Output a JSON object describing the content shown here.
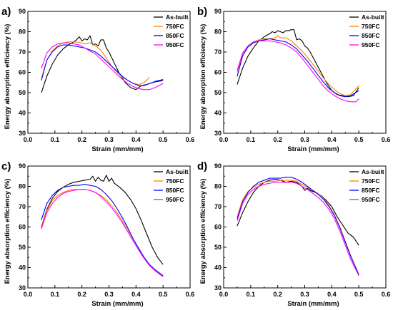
{
  "chart_data": [
    {
      "type": "line",
      "panel_label": "a)",
      "xlabel": "Strain (mm/mm)",
      "ylabel": "Energy absorption efficiency (%)",
      "xlim": [
        0.0,
        0.6
      ],
      "ylim": [
        30,
        90
      ],
      "xticks": [
        "0.0",
        "0.1",
        "0.2",
        "0.3",
        "0.4",
        "0.5",
        "0.6"
      ],
      "yticks": [
        "30",
        "40",
        "50",
        "60",
        "70",
        "80",
        "90"
      ],
      "legend": "top-right",
      "series": [
        {
          "name": "As-built",
          "color": "#000000",
          "x": [
            0.05,
            0.07,
            0.09,
            0.11,
            0.13,
            0.15,
            0.17,
            0.18,
            0.19,
            0.2,
            0.21,
            0.22,
            0.23,
            0.24,
            0.25,
            0.26,
            0.27,
            0.28,
            0.29,
            0.3,
            0.32,
            0.34,
            0.36,
            0.38,
            0.4,
            0.42,
            0.44,
            0.46,
            0.48,
            0.5
          ],
          "y": [
            50,
            58,
            64,
            68.5,
            71.5,
            73.5,
            75,
            76,
            77.5,
            75.5,
            76.5,
            76,
            78,
            73.5,
            74,
            73,
            76,
            76,
            72,
            70,
            64.5,
            59,
            55,
            52.5,
            51.5,
            53.5,
            54,
            55,
            55.5,
            56
          ]
        },
        {
          "name": "750FC",
          "color": "#ff8000",
          "x": [
            0.05,
            0.07,
            0.09,
            0.11,
            0.13,
            0.15,
            0.17,
            0.19,
            0.21,
            0.23,
            0.25,
            0.27,
            0.29,
            0.31,
            0.33,
            0.35,
            0.37,
            0.39,
            0.41,
            0.43,
            0.45
          ],
          "y": [
            57,
            66,
            70.5,
            73,
            74.5,
            75,
            75,
            74.8,
            74,
            74.5,
            73,
            71,
            67,
            63,
            60,
            57.5,
            56,
            54.5,
            54,
            55,
            57.5
          ]
        },
        {
          "name": "850FC",
          "color": "#0000ff",
          "x": [
            0.05,
            0.07,
            0.09,
            0.11,
            0.13,
            0.15,
            0.17,
            0.19,
            0.21,
            0.23,
            0.25,
            0.27,
            0.29,
            0.31,
            0.33,
            0.35,
            0.37,
            0.39,
            0.41,
            0.43,
            0.45,
            0.47,
            0.5
          ],
          "y": [
            56,
            66,
            70,
            72.5,
            73.5,
            73.5,
            73,
            72.5,
            72,
            71,
            70,
            68,
            65.5,
            63,
            60.5,
            58,
            56,
            54.5,
            53.5,
            53.5,
            54.5,
            55.5,
            56.5
          ]
        },
        {
          "name": "950FC",
          "color": "#ff00ff",
          "x": [
            0.05,
            0.07,
            0.09,
            0.11,
            0.13,
            0.15,
            0.17,
            0.19,
            0.21,
            0.23,
            0.25,
            0.27,
            0.29,
            0.31,
            0.33,
            0.35,
            0.37,
            0.39,
            0.41,
            0.43,
            0.45,
            0.47,
            0.5
          ],
          "y": [
            62,
            69.5,
            72.5,
            74,
            74.5,
            74.5,
            74,
            73.5,
            72,
            70.5,
            69,
            66.5,
            64,
            61.5,
            59,
            56.5,
            54.5,
            53,
            52,
            51.5,
            51.5,
            52.5,
            54.5
          ]
        }
      ]
    },
    {
      "type": "line",
      "panel_label": "b)",
      "xlabel": "Strain (mm/mm)",
      "ylabel": "Energy absorption efficiency (%)",
      "xlim": [
        0.0,
        0.6
      ],
      "ylim": [
        30,
        90
      ],
      "xticks": [
        "0.0",
        "0.1",
        "0.2",
        "0.3",
        "0.4",
        "0.5",
        "0.6"
      ],
      "yticks": [
        "30",
        "40",
        "50",
        "60",
        "70",
        "80",
        "90"
      ],
      "legend": "top-right",
      "series": [
        {
          "name": "As-built",
          "color": "#000000",
          "x": [
            0.05,
            0.07,
            0.09,
            0.11,
            0.13,
            0.15,
            0.17,
            0.18,
            0.19,
            0.2,
            0.21,
            0.22,
            0.23,
            0.24,
            0.25,
            0.26,
            0.27,
            0.28,
            0.29,
            0.3,
            0.31,
            0.32,
            0.34,
            0.36,
            0.38,
            0.4,
            0.42,
            0.44,
            0.46,
            0.48,
            0.5
          ],
          "y": [
            54,
            62,
            68,
            72,
            75.5,
            77.5,
            79,
            80,
            79.5,
            80.5,
            80,
            79.5,
            80.5,
            80.5,
            81,
            81,
            76,
            76.5,
            75.5,
            73,
            72,
            70,
            65,
            60,
            55,
            51,
            49,
            48.5,
            48,
            48.5,
            52.5
          ]
        },
        {
          "name": "750FC",
          "color": "#ff8000",
          "x": [
            0.05,
            0.07,
            0.09,
            0.11,
            0.13,
            0.15,
            0.17,
            0.19,
            0.2,
            0.21,
            0.23,
            0.25,
            0.27,
            0.29,
            0.31,
            0.33,
            0.35,
            0.37,
            0.39,
            0.41,
            0.43,
            0.45,
            0.47,
            0.5
          ],
          "y": [
            60,
            69,
            73,
            75,
            76,
            76.5,
            76.5,
            77,
            78,
            77,
            77,
            75.5,
            73,
            70.5,
            67.5,
            64,
            60.5,
            57,
            54,
            51.5,
            49.5,
            48.5,
            49,
            53.5
          ]
        },
        {
          "name": "850FC",
          "color": "#0000ff",
          "x": [
            0.05,
            0.07,
            0.09,
            0.11,
            0.13,
            0.15,
            0.17,
            0.19,
            0.21,
            0.23,
            0.25,
            0.27,
            0.29,
            0.31,
            0.33,
            0.35,
            0.37,
            0.39,
            0.41,
            0.43,
            0.45,
            0.47,
            0.5
          ],
          "y": [
            58,
            68,
            72.5,
            74.5,
            75.5,
            76,
            76.5,
            76,
            75.5,
            75,
            73.5,
            71.5,
            68.5,
            65.5,
            62,
            58.5,
            55,
            52,
            50,
            48.5,
            48,
            48.5,
            51
          ]
        },
        {
          "name": "950FC",
          "color": "#ff00ff",
          "x": [
            0.05,
            0.07,
            0.09,
            0.11,
            0.13,
            0.15,
            0.17,
            0.19,
            0.21,
            0.23,
            0.25,
            0.27,
            0.29,
            0.31,
            0.33,
            0.35,
            0.37,
            0.39,
            0.41,
            0.43,
            0.45,
            0.47,
            0.49,
            0.5
          ],
          "y": [
            61,
            69.5,
            73,
            75,
            75.5,
            75.5,
            75.5,
            75,
            74.5,
            73.5,
            72,
            70,
            67,
            63.5,
            60,
            56.5,
            53,
            50.5,
            48.5,
            47,
            46,
            45.5,
            45.5,
            47
          ]
        }
      ]
    },
    {
      "type": "line",
      "panel_label": "c)",
      "xlabel": "Strain (mm/mm)",
      "ylabel": "Energy absorption efficiency (%)",
      "xlim": [
        0.0,
        0.6
      ],
      "ylim": [
        30,
        90
      ],
      "xticks": [
        "0.0",
        "0.1",
        "0.2",
        "0.3",
        "0.4",
        "0.5",
        "0.6"
      ],
      "yticks": [
        "30",
        "40",
        "50",
        "60",
        "70",
        "80",
        "90"
      ],
      "legend": "top-right",
      "series": [
        {
          "name": "As-built",
          "color": "#000000",
          "x": [
            0.05,
            0.07,
            0.09,
            0.11,
            0.13,
            0.15,
            0.17,
            0.19,
            0.21,
            0.23,
            0.24,
            0.25,
            0.26,
            0.27,
            0.28,
            0.29,
            0.3,
            0.31,
            0.32,
            0.34,
            0.36,
            0.38,
            0.4,
            0.42,
            0.44,
            0.46,
            0.48,
            0.5
          ],
          "y": [
            60,
            68.5,
            74,
            77.5,
            79.5,
            81,
            82,
            82.5,
            83,
            83.5,
            85,
            82.5,
            84.5,
            83,
            82.5,
            85.5,
            82.5,
            84,
            81.5,
            79.5,
            77,
            73.5,
            69,
            63,
            56.5,
            50,
            45,
            41.5
          ]
        },
        {
          "name": "750FC",
          "color": "#ff8000",
          "x": [
            0.05,
            0.07,
            0.09,
            0.11,
            0.13,
            0.15,
            0.17,
            0.19,
            0.21,
            0.23,
            0.25,
            0.27,
            0.29,
            0.31,
            0.33,
            0.35,
            0.37,
            0.39,
            0.41,
            0.43,
            0.45,
            0.47,
            0.5
          ],
          "y": [
            59.5,
            68,
            73,
            75.5,
            77,
            78,
            78.5,
            78.5,
            78.5,
            78,
            77,
            75.5,
            73.5,
            70.5,
            67,
            63,
            58.5,
            54,
            49.5,
            45,
            41,
            38.5,
            35.5
          ]
        },
        {
          "name": "850FC",
          "color": "#0000ff",
          "x": [
            0.05,
            0.07,
            0.09,
            0.11,
            0.13,
            0.15,
            0.17,
            0.19,
            0.21,
            0.23,
            0.25,
            0.27,
            0.29,
            0.31,
            0.33,
            0.35,
            0.37,
            0.39,
            0.41,
            0.43,
            0.45,
            0.47,
            0.5
          ],
          "y": [
            63.5,
            71.5,
            75.5,
            78,
            79.5,
            80,
            80.5,
            80.5,
            81,
            80.5,
            80,
            78.5,
            76,
            73,
            69,
            64.5,
            59.5,
            54,
            49.5,
            45,
            41.5,
            39,
            36
          ]
        },
        {
          "name": "950FC",
          "color": "#ff00ff",
          "x": [
            0.05,
            0.07,
            0.09,
            0.11,
            0.13,
            0.15,
            0.17,
            0.19,
            0.21,
            0.23,
            0.25,
            0.27,
            0.29,
            0.31,
            0.33,
            0.35,
            0.37,
            0.39,
            0.41,
            0.43,
            0.45,
            0.47,
            0.5
          ],
          "y": [
            59,
            67,
            71.5,
            74.5,
            76.5,
            77.5,
            78,
            78.5,
            78.5,
            78,
            77,
            75,
            72.5,
            69.5,
            66,
            62,
            57.5,
            53,
            48.5,
            44.5,
            41,
            38.5,
            35.5
          ]
        }
      ]
    },
    {
      "type": "line",
      "panel_label": "d)",
      "xlabel": "Strain (mm/mm)",
      "ylabel": "Energy absorption efficiency (%)",
      "xlim": [
        0.0,
        0.6
      ],
      "ylim": [
        30,
        90
      ],
      "xticks": [
        "0.0",
        "0.1",
        "0.2",
        "0.3",
        "0.4",
        "0.5",
        "0.6"
      ],
      "yticks": [
        "30",
        "40",
        "50",
        "60",
        "70",
        "80",
        "90"
      ],
      "legend": "top-right",
      "series": [
        {
          "name": "As-built",
          "color": "#000000",
          "x": [
            0.05,
            0.07,
            0.09,
            0.11,
            0.13,
            0.15,
            0.17,
            0.19,
            0.21,
            0.23,
            0.25,
            0.27,
            0.29,
            0.3,
            0.31,
            0.32,
            0.34,
            0.36,
            0.38,
            0.4,
            0.42,
            0.44,
            0.46,
            0.48,
            0.49,
            0.5
          ],
          "y": [
            60.5,
            67,
            72.5,
            77,
            80,
            82,
            83,
            83.5,
            83,
            82,
            82.5,
            82,
            80,
            78,
            79,
            78,
            77,
            75.5,
            73,
            70,
            65,
            61,
            57,
            55,
            53,
            51
          ]
        },
        {
          "name": "750FC",
          "color": "#ff8000",
          "x": [
            0.05,
            0.07,
            0.09,
            0.11,
            0.13,
            0.15,
            0.17,
            0.19,
            0.21,
            0.23,
            0.25,
            0.27,
            0.29,
            0.31,
            0.33,
            0.35,
            0.37,
            0.39,
            0.41,
            0.43,
            0.45,
            0.47,
            0.5
          ],
          "y": [
            65,
            73.5,
            77.5,
            79.5,
            81,
            82,
            82.5,
            82.5,
            83,
            83,
            83,
            82.5,
            81,
            79.5,
            78,
            76.5,
            74,
            70.5,
            66,
            60,
            53,
            46,
            36.5
          ]
        },
        {
          "name": "850FC",
          "color": "#0000ff",
          "x": [
            0.05,
            0.07,
            0.09,
            0.11,
            0.13,
            0.15,
            0.17,
            0.19,
            0.21,
            0.23,
            0.25,
            0.27,
            0.29,
            0.31,
            0.33,
            0.35,
            0.37,
            0.39,
            0.41,
            0.43,
            0.45,
            0.47,
            0.5
          ],
          "y": [
            64,
            72.5,
            77,
            80,
            82,
            83,
            84,
            84,
            84,
            84.5,
            84.5,
            83.5,
            82,
            80,
            78,
            76,
            73.5,
            70,
            65.5,
            59.5,
            52.5,
            45.5,
            36.5
          ]
        },
        {
          "name": "950FC",
          "color": "#ff00ff",
          "x": [
            0.05,
            0.07,
            0.09,
            0.11,
            0.13,
            0.15,
            0.17,
            0.19,
            0.21,
            0.23,
            0.25,
            0.27,
            0.29,
            0.31,
            0.33,
            0.35,
            0.37,
            0.39,
            0.41,
            0.43,
            0.45,
            0.47,
            0.5
          ],
          "y": [
            63,
            71.5,
            76,
            78.5,
            80,
            81,
            81.5,
            82,
            82,
            82,
            82,
            81.5,
            80,
            78.5,
            76.5,
            74.5,
            72,
            68.5,
            64,
            58,
            51,
            44,
            36
          ]
        }
      ]
    }
  ]
}
